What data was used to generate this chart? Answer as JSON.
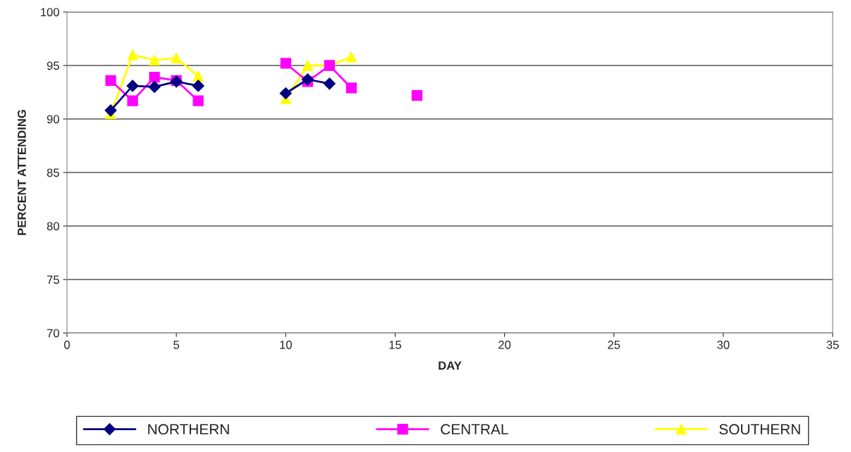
{
  "chart_data": {
    "type": "line",
    "xlabel": "DAY",
    "ylabel": "PERCENT ATTENDING",
    "xlim": [
      0,
      35
    ],
    "xticks": [
      0,
      5,
      10,
      15,
      20,
      25,
      30,
      35
    ],
    "ylim": [
      70,
      100
    ],
    "yticks": [
      70,
      75,
      80,
      85,
      90,
      95,
      100
    ],
    "grid": "y",
    "legend": "bottom",
    "line_style": "solid",
    "series": [
      {
        "name": "NORTHERN",
        "color": "#000080",
        "marker": "diamond",
        "x": [
          2,
          3,
          4,
          5,
          6,
          8,
          10,
          11,
          12
        ],
        "values": [
          90.8,
          93.1,
          93.0,
          93.5,
          93.1,
          null,
          92.4,
          93.7,
          93.3
        ]
      },
      {
        "name": "CENTRAL",
        "color": "#ff00ff",
        "marker": "square",
        "x": [
          2,
          3,
          4,
          5,
          6,
          8,
          10,
          11,
          12,
          13,
          14,
          16
        ],
        "values": [
          93.6,
          91.7,
          93.9,
          93.6,
          91.7,
          null,
          95.2,
          93.5,
          95.0,
          92.9,
          null,
          92.2
        ]
      },
      {
        "name": "SOUTHERN",
        "color": "#ffff00",
        "marker": "triangle",
        "x": [
          2,
          3,
          4,
          5,
          6,
          8,
          10,
          11,
          12,
          13
        ],
        "values": [
          90.5,
          96.0,
          95.5,
          95.7,
          94.0,
          null,
          91.9,
          95.0,
          95.0,
          95.8
        ]
      }
    ]
  }
}
